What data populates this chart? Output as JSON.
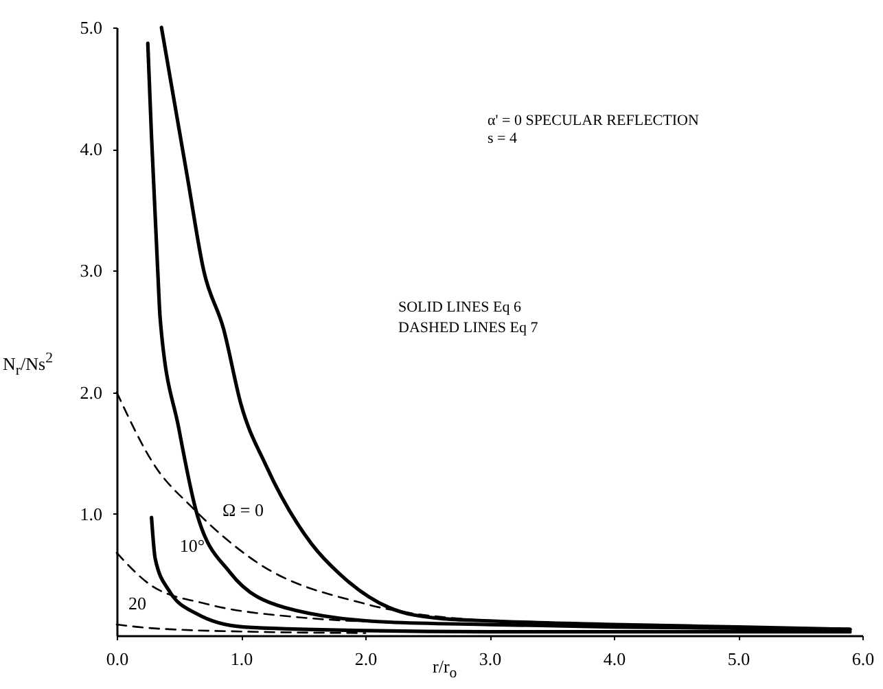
{
  "chart_data": {
    "type": "line",
    "xlabel": "r/r$_{o}$",
    "ylabel": "N$_{r}$/Ns$^{2}$",
    "xlim": [
      0,
      6
    ],
    "ylim": [
      0,
      5
    ],
    "xticks": [
      {
        "value": 0,
        "label": "0.0"
      },
      {
        "value": 1,
        "label": "1.0"
      },
      {
        "value": 2,
        "label": "2.0"
      },
      {
        "value": 3,
        "label": "3.0"
      },
      {
        "value": 4,
        "label": "4.0"
      },
      {
        "value": 5,
        "label": "5.0"
      },
      {
        "value": 6,
        "label": "6.0"
      }
    ],
    "yticks": [
      {
        "value": 1,
        "label": "1.0"
      },
      {
        "value": 2,
        "label": "2.0"
      },
      {
        "value": 3,
        "label": "3.0"
      },
      {
        "value": 4,
        "label": "4.0"
      },
      {
        "value": 5,
        "label": "5.0"
      }
    ],
    "grid": false,
    "marker": "none",
    "series": [
      {
        "color": "#000000",
        "line_style": "solid",
        "x": [
          0.36,
          0.57,
          0.7,
          0.86,
          1.0,
          1.2,
          1.57,
          1.8,
          2.19,
          2.6,
          3.0,
          4.0,
          5.0,
          5.9
        ],
        "values": [
          5.0,
          3.76,
          3.0,
          2.52,
          1.9,
          1.4,
          0.75,
          0.5,
          0.23,
          0.14,
          0.12,
          0.09,
          0.07,
          0.05
        ]
      },
      {
        "color": "#000000",
        "line_style": "solid",
        "x": [
          0.25,
          0.28,
          0.33,
          0.35,
          0.5,
          0.64,
          0.91,
          1.35,
          2.19,
          3.0,
          4.0,
          5.0,
          5.9
        ],
        "values": [
          4.87,
          4.1,
          3.0,
          2.6,
          1.7,
          1.02,
          0.52,
          0.23,
          0.11,
          0.09,
          0.07,
          0.06,
          0.05
        ]
      },
      {
        "color": "#000000",
        "line_style": "solid",
        "x": [
          0.28,
          0.31,
          0.42,
          0.64,
          1.02,
          2.0,
          3.0,
          4.0,
          5.0,
          5.9
        ],
        "values": [
          0.97,
          0.63,
          0.37,
          0.18,
          0.07,
          0.04,
          0.03,
          0.03,
          0.03,
          0.03
        ]
      },
      {
        "color": "#000000",
        "line_style": "dashed",
        "x": [
          0,
          0.31,
          0.61,
          1.13,
          2.0,
          3.0
        ],
        "values": [
          2.0,
          1.39,
          1.05,
          0.6,
          0.26,
          0.12
        ]
      },
      {
        "color": "#000000",
        "line_style": "dashed",
        "x": [
          0,
          0.28,
          0.72,
          1.46,
          2.5
        ],
        "values": [
          0.68,
          0.41,
          0.26,
          0.15,
          0.1
        ]
      },
      {
        "color": "#000000",
        "line_style": "dashed",
        "x": [
          0,
          0.28,
          1.13,
          2.0
        ],
        "values": [
          0.09,
          0.06,
          0.03,
          0.02
        ]
      }
    ],
    "annotations": [
      "Ω = 0",
      "10°",
      "20",
      "α' = 0  SPECULAR REFLECTION",
      "s    = 4",
      "SOLID LINES   Eq  6",
      "DASHED LINES   Eq  7"
    ]
  }
}
